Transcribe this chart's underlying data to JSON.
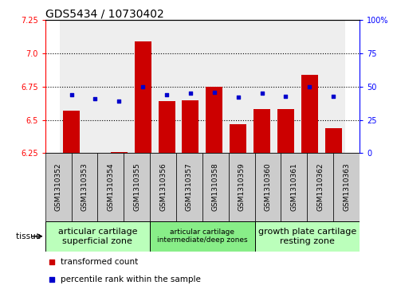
{
  "title": "GDS5434 / 10730402",
  "samples": [
    "GSM1310352",
    "GSM1310353",
    "GSM1310354",
    "GSM1310355",
    "GSM1310356",
    "GSM1310357",
    "GSM1310358",
    "GSM1310359",
    "GSM1310360",
    "GSM1310361",
    "GSM1310362",
    "GSM1310363"
  ],
  "transformed_count": [
    6.57,
    6.25,
    6.26,
    7.09,
    6.64,
    6.65,
    6.75,
    6.47,
    6.58,
    6.58,
    6.84,
    6.44
  ],
  "percentile_rank": [
    44,
    41,
    39,
    50,
    44,
    45,
    46,
    42,
    45,
    43,
    50,
    43
  ],
  "ylim_left": [
    6.25,
    7.25
  ],
  "ylim_right": [
    0,
    100
  ],
  "yticks_left": [
    6.25,
    6.5,
    6.75,
    7.0,
    7.25
  ],
  "yticks_right": [
    0,
    25,
    50,
    75,
    100
  ],
  "bar_color": "#cc0000",
  "dot_color": "#0000cc",
  "tissue_groups": [
    {
      "label": "articular cartilage\nsuperficial zone",
      "start": 0,
      "end": 3,
      "color": "#bbffbb",
      "fontsize": 8
    },
    {
      "label": "articular cartilage\nintermediate/deep zones",
      "start": 4,
      "end": 7,
      "color": "#88ee88",
      "fontsize": 6.5
    },
    {
      "label": "growth plate cartilage\nresting zone",
      "start": 8,
      "end": 11,
      "color": "#bbffbb",
      "fontsize": 8
    }
  ],
  "legend_bar_label": "transformed count",
  "legend_dot_label": "percentile rank within the sample",
  "tissue_label": "tissue",
  "title_fontsize": 10,
  "tick_fontsize": 7,
  "xtick_fontsize": 6.5,
  "legend_fontsize": 7.5
}
